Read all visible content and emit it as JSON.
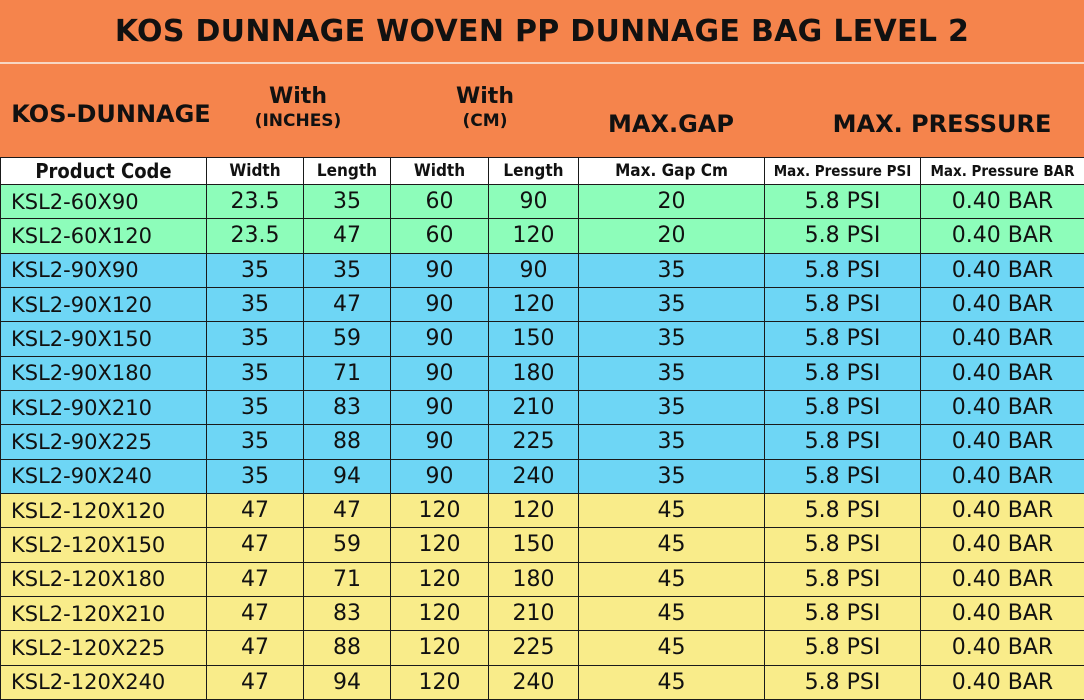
{
  "title": "KOS DUNNAGE WOVEN PP DUNNAGE BAG LEVEL 2",
  "header": {
    "brand": "KOS-DUNNAGE",
    "inches_line1": "With",
    "inches_line2": "(INCHES)",
    "cm_line1": "With",
    "cm_line2": "(CM)",
    "max_gap": "MAX.GAP",
    "max_pressure": "MAX. PRESSURE"
  },
  "columns": [
    "Product Code",
    "Width",
    "Length",
    "Width",
    "Length",
    "Max. Gap Cm",
    "Max. Pressure PSI",
    "Max. Pressure BAR"
  ],
  "colors": {
    "green": "#8dfdba",
    "blue": "#6ed6f5",
    "yellow": "#f9ec8a",
    "orange": "#f5844c"
  },
  "rows": [
    {
      "group": "green",
      "cells": [
        "KSL2-60X90",
        "23.5",
        "35",
        "60",
        "90",
        "20",
        "5.8 PSI",
        "0.40 BAR"
      ]
    },
    {
      "group": "green",
      "cells": [
        "KSL2-60X120",
        "23.5",
        "47",
        "60",
        "120",
        "20",
        "5.8 PSI",
        "0.40 BAR"
      ]
    },
    {
      "group": "blue",
      "cells": [
        "KSL2-90X90",
        "35",
        "35",
        "90",
        "90",
        "35",
        "5.8 PSI",
        "0.40 BAR"
      ]
    },
    {
      "group": "blue",
      "cells": [
        "KSL2-90X120",
        "35",
        "47",
        "90",
        "120",
        "35",
        "5.8 PSI",
        "0.40 BAR"
      ]
    },
    {
      "group": "blue",
      "cells": [
        "KSL2-90X150",
        "35",
        "59",
        "90",
        "150",
        "35",
        "5.8 PSI",
        "0.40 BAR"
      ]
    },
    {
      "group": "blue",
      "cells": [
        "KSL2-90X180",
        "35",
        "71",
        "90",
        "180",
        "35",
        "5.8 PSI",
        "0.40 BAR"
      ]
    },
    {
      "group": "blue",
      "cells": [
        "KSL2-90X210",
        "35",
        "83",
        "90",
        "210",
        "35",
        "5.8 PSI",
        "0.40 BAR"
      ]
    },
    {
      "group": "blue",
      "cells": [
        "KSL2-90X225",
        "35",
        "88",
        "90",
        "225",
        "35",
        "5.8 PSI",
        "0.40 BAR"
      ]
    },
    {
      "group": "blue",
      "cells": [
        "KSL2-90X240",
        "35",
        "94",
        "90",
        "240",
        "35",
        "5.8 PSI",
        "0.40 BAR"
      ]
    },
    {
      "group": "yellow",
      "cells": [
        "KSL2-120X120",
        "47",
        "47",
        "120",
        "120",
        "45",
        "5.8 PSI",
        "0.40 BAR"
      ]
    },
    {
      "group": "yellow",
      "cells": [
        "KSL2-120X150",
        "47",
        "59",
        "120",
        "150",
        "45",
        "5.8 PSI",
        "0.40 BAR"
      ]
    },
    {
      "group": "yellow",
      "cells": [
        "KSL2-120X180",
        "47",
        "71",
        "120",
        "180",
        "45",
        "5.8 PSI",
        "0.40 BAR"
      ]
    },
    {
      "group": "yellow",
      "cells": [
        "KSL2-120X210",
        "47",
        "83",
        "120",
        "210",
        "45",
        "5.8 PSI",
        "0.40 BAR"
      ]
    },
    {
      "group": "yellow",
      "cells": [
        "KSL2-120X225",
        "47",
        "88",
        "120",
        "225",
        "45",
        "5.8 PSI",
        "0.40 BAR"
      ]
    },
    {
      "group": "yellow",
      "cells": [
        "KSL2-120X240",
        "47",
        "94",
        "120",
        "240",
        "45",
        "5.8 PSI",
        "0.40 BAR"
      ]
    }
  ]
}
